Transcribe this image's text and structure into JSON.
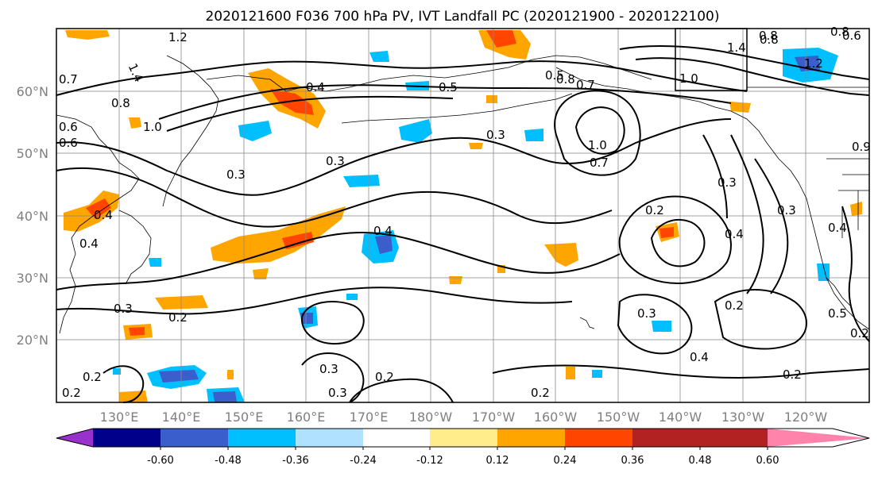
{
  "title": "2020121600 F036 700 hPa PV, IVT Landfall PC (2020121900 - 2020122100)",
  "lat_labels": [
    "60°N",
    "50°N",
    "40°N",
    "30°N",
    "20°N"
  ],
  "lon_labels": [
    "130°E",
    "140°E",
    "150°E",
    "160°E",
    "170°E",
    "180°W",
    "170°W",
    "160°W",
    "150°W",
    "140°W",
    "130°W",
    "120°W"
  ],
  "colorbar": {
    "colors": [
      "#9932cc",
      "#00008b",
      "#3a5fcd",
      "#00bfff",
      "#b0e2ff",
      "#ffffff",
      "#ffec8b",
      "#ffa500",
      "#ff4500",
      "#b22222",
      "#ff83aa"
    ],
    "tick_labels": [
      "-0.60",
      "-0.48",
      "-0.36",
      "-0.24",
      "-0.12",
      "0.12",
      "0.24",
      "0.36",
      "0.48",
      "0.60"
    ]
  },
  "contour_labels": [
    "1.2",
    "1.4",
    "0.7",
    "0.8",
    "0.6",
    "0.5",
    "0.3",
    "0.3",
    "0.2",
    "0.3",
    "0.4",
    "0.4",
    "0.2",
    "0.3",
    "0.3",
    "0.2",
    "0.5",
    "0.8",
    "0.7",
    "1.0",
    "0.7",
    "0.8",
    "1.0",
    "0.2",
    "0.3",
    "0.4",
    "0.3",
    "0.2",
    "0.4",
    "0.2",
    "0.8",
    "1.2",
    "1.4",
    "0.8",
    "0.6",
    "1.0",
    "0.3",
    "0.9",
    "0.6",
    "0.4",
    "0.3",
    "0.5",
    "0.2",
    "0.4",
    "0.2",
    "0.4",
    "0.2"
  ]
}
